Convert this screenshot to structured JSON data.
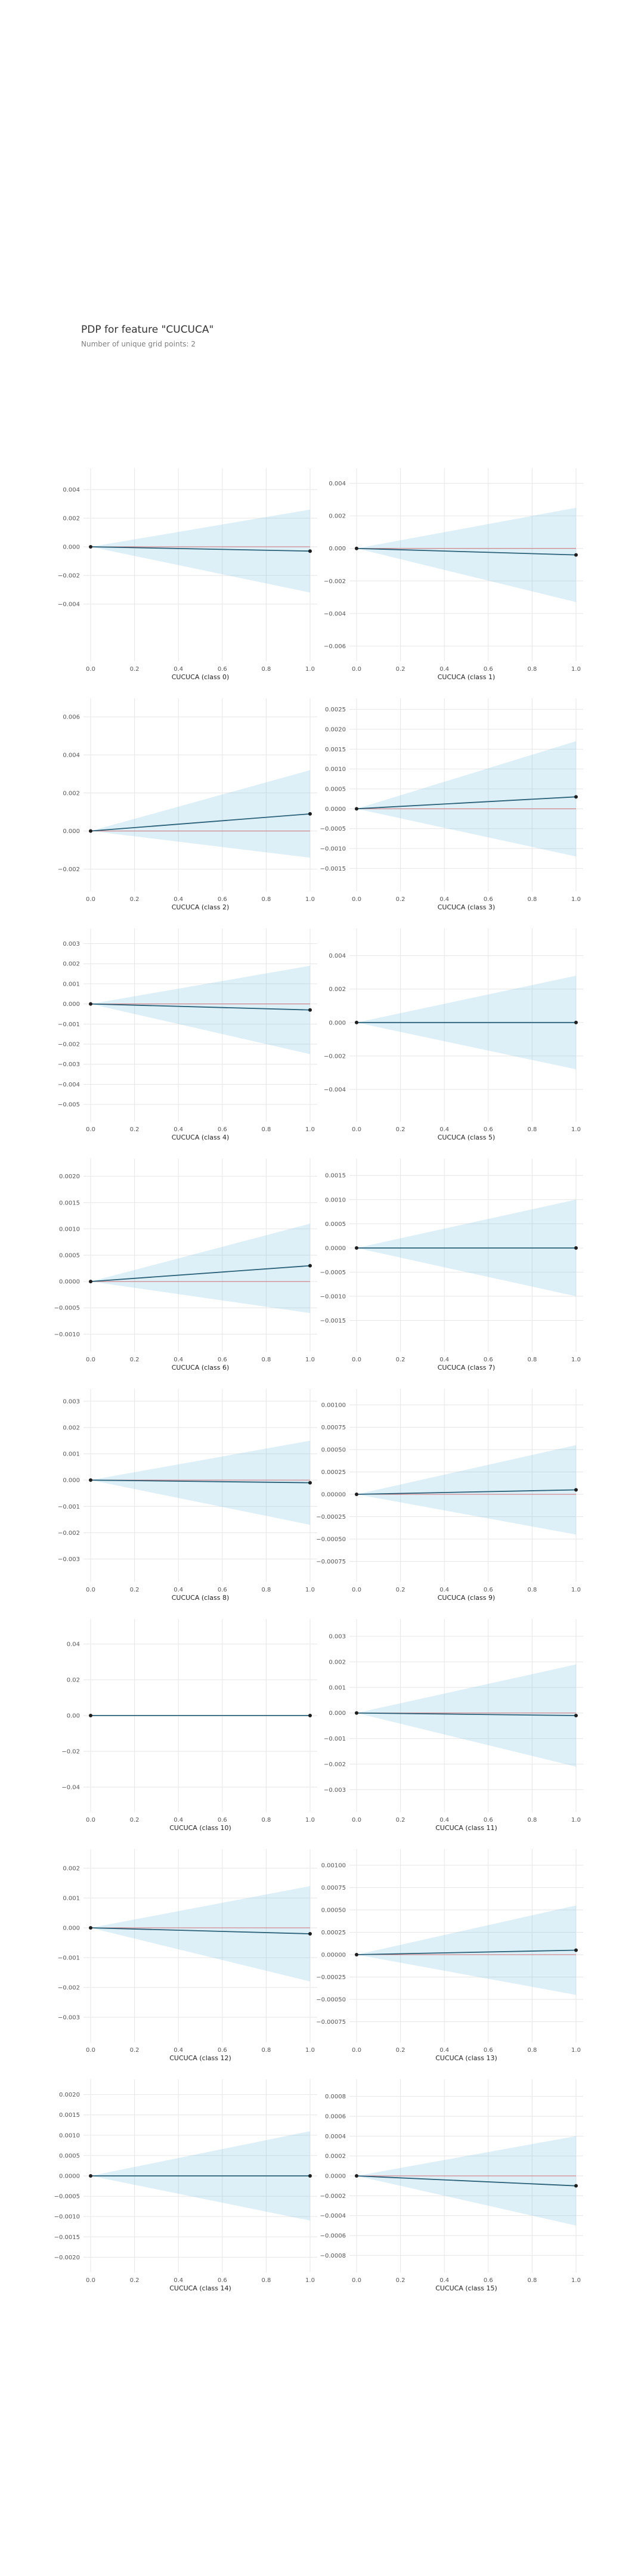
{
  "header": {
    "title": "PDP for feature \"CUCUCA\"",
    "subtitle": "Number of unique grid points: 2"
  },
  "colors": {
    "ci_fill": "#66b9df",
    "line": "#2a6178",
    "zero_line": "#d62728",
    "grid": "#e6e6e6",
    "tick_text": "#555555",
    "axis_title": "#222222"
  },
  "chart_data": [
    {
      "type": "line",
      "xlabel": "CUCUCA (class 0)",
      "x": [
        0,
        1
      ],
      "y": [
        0,
        -0.0003
      ],
      "ci_upper": [
        0,
        0.0026
      ],
      "ci_lower": [
        0,
        -0.0032
      ],
      "ylim": [
        -0.0075,
        0.005
      ],
      "yticks": [
        -0.004,
        -0.002,
        0,
        0.002,
        0.004
      ],
      "ytick_labels": [
        "−0.004",
        "−0.002",
        "0.000",
        "0.002",
        "0.004"
      ],
      "xticks": [
        0,
        0.2,
        0.4,
        0.6,
        0.8,
        1
      ],
      "xtick_labels": [
        "0.0",
        "0.2",
        "0.4",
        "0.6",
        "0.8",
        "1.0"
      ]
    },
    {
      "type": "line",
      "xlabel": "CUCUCA (class 1)",
      "x": [
        0,
        1
      ],
      "y": [
        0,
        -0.0004
      ],
      "ci_upper": [
        0,
        0.0025
      ],
      "ci_lower": [
        0,
        -0.0033
      ],
      "ylim": [
        -0.0065,
        0.0045
      ],
      "yticks": [
        -0.006,
        -0.004,
        -0.002,
        0,
        0.002,
        0.004
      ],
      "ytick_labels": [
        "−0.006",
        "−0.004",
        "−0.002",
        "0.000",
        "0.002",
        "0.004"
      ],
      "xticks": [
        0,
        0.2,
        0.4,
        0.6,
        0.8,
        1
      ],
      "xtick_labels": [
        "0.0",
        "0.2",
        "0.4",
        "0.6",
        "0.8",
        "1.0"
      ]
    },
    {
      "type": "line",
      "xlabel": "CUCUCA (class 2)",
      "x": [
        0,
        1
      ],
      "y": [
        0,
        0.0009
      ],
      "ci_upper": [
        0,
        0.0032
      ],
      "ci_lower": [
        0,
        -0.0014
      ],
      "ylim": [
        -0.0028,
        0.0066
      ],
      "yticks": [
        -0.002,
        0,
        0.002,
        0.004,
        0.006
      ],
      "ytick_labels": [
        "−0.002",
        "0.000",
        "0.002",
        "0.004",
        "0.006"
      ],
      "xticks": [
        0,
        0.2,
        0.4,
        0.6,
        0.8,
        1
      ],
      "xtick_labels": [
        "0.0",
        "0.2",
        "0.4",
        "0.6",
        "0.8",
        "1.0"
      ]
    },
    {
      "type": "line",
      "xlabel": "CUCUCA (class 3)",
      "x": [
        0,
        1
      ],
      "y": [
        0,
        0.0003
      ],
      "ci_upper": [
        0,
        0.0017
      ],
      "ci_lower": [
        0,
        -0.0012
      ],
      "ylim": [
        -0.0019,
        0.0026
      ],
      "yticks": [
        -0.0015,
        -0.001,
        -0.0005,
        0,
        0.0005,
        0.001,
        0.0015,
        0.002,
        0.0025
      ],
      "ytick_labels": [
        "−0.0015",
        "−0.0010",
        "−0.0005",
        "0.0000",
        "0.0005",
        "0.0010",
        "0.0015",
        "0.0020",
        "0.0025"
      ],
      "xticks": [
        0,
        0.2,
        0.4,
        0.6,
        0.8,
        1
      ],
      "xtick_labels": [
        "0.0",
        "0.2",
        "0.4",
        "0.6",
        "0.8",
        "1.0"
      ]
    },
    {
      "type": "line",
      "xlabel": "CUCUCA (class 4)",
      "x": [
        0,
        1
      ],
      "y": [
        0,
        -0.0003
      ],
      "ci_upper": [
        0,
        0.0019
      ],
      "ci_lower": [
        0,
        -0.0025
      ],
      "ylim": [
        -0.0055,
        0.0034
      ],
      "yticks": [
        -0.005,
        -0.004,
        -0.003,
        -0.002,
        -0.001,
        0,
        0.001,
        0.002,
        0.003
      ],
      "ytick_labels": [
        "−0.005",
        "−0.004",
        "−0.003",
        "−0.002",
        "−0.001",
        "0.000",
        "0.001",
        "0.002",
        "0.003"
      ],
      "xticks": [
        0,
        0.2,
        0.4,
        0.6,
        0.8,
        1
      ],
      "xtick_labels": [
        "0.0",
        "0.2",
        "0.4",
        "0.6",
        "0.8",
        "1.0"
      ]
    },
    {
      "type": "line",
      "xlabel": "CUCUCA (class 5)",
      "x": [
        0,
        1
      ],
      "y": [
        0,
        0
      ],
      "ci_upper": [
        0,
        0.0028
      ],
      "ci_lower": [
        0,
        -0.0028
      ],
      "ylim": [
        -0.0055,
        0.0052
      ],
      "yticks": [
        -0.004,
        -0.002,
        0,
        0.002,
        0.004
      ],
      "ytick_labels": [
        "−0.004",
        "−0.002",
        "0.000",
        "0.002",
        "0.004"
      ],
      "xticks": [
        0,
        0.2,
        0.4,
        0.6,
        0.8,
        1
      ],
      "xtick_labels": [
        "0.0",
        "0.2",
        "0.4",
        "0.6",
        "0.8",
        "1.0"
      ]
    },
    {
      "type": "line",
      "xlabel": "CUCUCA (class 6)",
      "x": [
        0,
        1
      ],
      "y": [
        0,
        0.0003
      ],
      "ci_upper": [
        0,
        0.0011
      ],
      "ci_lower": [
        0,
        -0.0006
      ],
      "ylim": [
        -0.0012,
        0.0022
      ],
      "yticks": [
        -0.001,
        -0.0005,
        0,
        0.0005,
        0.001,
        0.0015,
        0.002
      ],
      "ytick_labels": [
        "−0.0010",
        "−0.0005",
        "0.0000",
        "0.0005",
        "0.0010",
        "0.0015",
        "0.0020"
      ],
      "xticks": [
        0,
        0.2,
        0.4,
        0.6,
        0.8,
        1
      ],
      "xtick_labels": [
        "0.0",
        "0.2",
        "0.4",
        "0.6",
        "0.8",
        "1.0"
      ]
    },
    {
      "type": "line",
      "xlabel": "CUCUCA (class 7)",
      "x": [
        0,
        1
      ],
      "y": [
        0,
        0
      ],
      "ci_upper": [
        0,
        0.001
      ],
      "ci_lower": [
        0,
        -0.001
      ],
      "ylim": [
        -0.002,
        0.0017
      ],
      "yticks": [
        -0.0015,
        -0.001,
        -0.0005,
        0,
        0.0005,
        0.001,
        0.0015
      ],
      "ytick_labels": [
        "−0.0015",
        "−0.0010",
        "−0.0005",
        "0.0000",
        "0.0005",
        "0.0010",
        "0.0015"
      ],
      "xticks": [
        0,
        0.2,
        0.4,
        0.6,
        0.8,
        1
      ],
      "xtick_labels": [
        "0.0",
        "0.2",
        "0.4",
        "0.6",
        "0.8",
        "1.0"
      ]
    },
    {
      "type": "line",
      "xlabel": "CUCUCA (class 8)",
      "x": [
        0,
        1
      ],
      "y": [
        0,
        -0.0001
      ],
      "ci_upper": [
        0,
        0.0015
      ],
      "ci_lower": [
        0,
        -0.0017
      ],
      "ylim": [
        -0.0036,
        0.0032
      ],
      "yticks": [
        -0.003,
        -0.002,
        -0.001,
        0,
        0.001,
        0.002,
        0.003
      ],
      "ytick_labels": [
        "−0.003",
        "−0.002",
        "−0.001",
        "0.000",
        "0.001",
        "0.002",
        "0.003"
      ],
      "xticks": [
        0,
        0.2,
        0.4,
        0.6,
        0.8,
        1
      ],
      "xtick_labels": [
        "0.0",
        "0.2",
        "0.4",
        "0.6",
        "0.8",
        "1.0"
      ]
    },
    {
      "type": "line",
      "xlabel": "CUCUCA (class 9)",
      "x": [
        0,
        1
      ],
      "y": [
        0,
        5e-05
      ],
      "ci_upper": [
        0,
        0.00055
      ],
      "ci_lower": [
        0,
        -0.00045
      ],
      "ylim": [
        -0.0009,
        0.0011
      ],
      "yticks": [
        -0.00075,
        -0.0005,
        -0.00025,
        0,
        0.00025,
        0.0005,
        0.00075,
        0.001
      ],
      "ytick_labels": [
        "−0.00075",
        "−0.00050",
        "−0.00025",
        "0.00000",
        "0.00025",
        "0.00050",
        "0.00075",
        "0.00100"
      ],
      "xticks": [
        0,
        0.2,
        0.4,
        0.6,
        0.8,
        1
      ],
      "xtick_labels": [
        "0.0",
        "0.2",
        "0.4",
        "0.6",
        "0.8",
        "1.0"
      ]
    },
    {
      "type": "line",
      "xlabel": "CUCUCA (class 10)",
      "x": [
        0,
        1
      ],
      "y": [
        0,
        0
      ],
      "ci_upper": [
        0,
        0
      ],
      "ci_lower": [
        0,
        0
      ],
      "ylim": [
        -0.05,
        0.05
      ],
      "yticks": [
        -0.04,
        -0.02,
        0,
        0.02,
        0.04
      ],
      "ytick_labels": [
        "−0.04",
        "−0.02",
        "0.00",
        "0.02",
        "0.04"
      ],
      "xticks": [
        0,
        0.2,
        0.4,
        0.6,
        0.8,
        1
      ],
      "xtick_labels": [
        "0.0",
        "0.2",
        "0.4",
        "0.6",
        "0.8",
        "1.0"
      ]
    },
    {
      "type": "line",
      "xlabel": "CUCUCA (class 11)",
      "x": [
        0,
        1
      ],
      "y": [
        0,
        -0.0001
      ],
      "ci_upper": [
        0,
        0.0019
      ],
      "ci_lower": [
        0,
        -0.0021
      ],
      "ylim": [
        -0.0036,
        0.0034
      ],
      "yticks": [
        -0.003,
        -0.002,
        -0.001,
        0,
        0.001,
        0.002,
        0.003
      ],
      "ytick_labels": [
        "−0.003",
        "−0.002",
        "−0.001",
        "0.000",
        "0.001",
        "0.002",
        "0.003"
      ],
      "xticks": [
        0,
        0.2,
        0.4,
        0.6,
        0.8,
        1
      ],
      "xtick_labels": [
        "0.0",
        "0.2",
        "0.4",
        "0.6",
        "0.8",
        "1.0"
      ]
    },
    {
      "type": "line",
      "xlabel": "CUCUCA (class 12)",
      "x": [
        0,
        1
      ],
      "y": [
        0,
        -0.0002
      ],
      "ci_upper": [
        0,
        0.0014
      ],
      "ci_lower": [
        0,
        -0.0018
      ],
      "ylim": [
        -0.0036,
        0.0024
      ],
      "yticks": [
        -0.003,
        -0.002,
        -0.001,
        0,
        0.001,
        0.002
      ],
      "ytick_labels": [
        "−0.003",
        "−0.002",
        "−0.001",
        "0.000",
        "0.001",
        "0.002"
      ],
      "xticks": [
        0,
        0.2,
        0.4,
        0.6,
        0.8,
        1
      ],
      "xtick_labels": [
        "0.0",
        "0.2",
        "0.4",
        "0.6",
        "0.8",
        "1.0"
      ]
    },
    {
      "type": "line",
      "xlabel": "CUCUCA (class 13)",
      "x": [
        0,
        1
      ],
      "y": [
        0,
        5e-05
      ],
      "ci_upper": [
        0,
        0.00055
      ],
      "ci_lower": [
        0,
        -0.00045
      ],
      "ylim": [
        -0.0009,
        0.0011
      ],
      "yticks": [
        -0.00075,
        -0.0005,
        -0.00025,
        0,
        0.00025,
        0.0005,
        0.00075,
        0.001
      ],
      "ytick_labels": [
        "−0.00075",
        "−0.00050",
        "−0.00025",
        "0.00000",
        "0.00025",
        "0.00050",
        "0.00075",
        "0.00100"
      ],
      "xticks": [
        0,
        0.2,
        0.4,
        0.6,
        0.8,
        1
      ],
      "xtick_labels": [
        "0.0",
        "0.2",
        "0.4",
        "0.6",
        "0.8",
        "1.0"
      ]
    },
    {
      "type": "line",
      "xlabel": "CUCUCA (class 14)",
      "x": [
        0,
        1
      ],
      "y": [
        0,
        0
      ],
      "ci_upper": [
        0,
        0.0011
      ],
      "ci_lower": [
        0,
        -0.0011
      ],
      "ylim": [
        -0.0022,
        0.0022
      ],
      "yticks": [
        -0.002,
        -0.0015,
        -0.001,
        -0.0005,
        0,
        0.0005,
        0.001,
        0.0015,
        0.002
      ],
      "ytick_labels": [
        "−0.0020",
        "−0.0015",
        "−0.0010",
        "−0.0005",
        "0.0000",
        "0.0005",
        "0.0010",
        "0.0015",
        "0.0020"
      ],
      "xticks": [
        0,
        0.2,
        0.4,
        0.6,
        0.8,
        1
      ],
      "xtick_labels": [
        "0.0",
        "0.2",
        "0.4",
        "0.6",
        "0.8",
        "1.0"
      ]
    },
    {
      "type": "line",
      "xlabel": "CUCUCA (class 15)",
      "x": [
        0,
        1
      ],
      "y": [
        0,
        -0.0001
      ],
      "ci_upper": [
        0,
        0.0004
      ],
      "ci_lower": [
        0,
        -0.0005
      ],
      "ylim": [
        -0.0009,
        0.0009
      ],
      "yticks": [
        -0.0008,
        -0.0006,
        -0.0004,
        -0.0002,
        0,
        0.0002,
        0.0004,
        0.0006,
        0.0008
      ],
      "ytick_labels": [
        "−0.0008",
        "−0.0006",
        "−0.0004",
        "−0.0002",
        "0.0000",
        "0.0002",
        "0.0004",
        "0.0006",
        "0.0008"
      ],
      "xticks": [
        0,
        0.2,
        0.4,
        0.6,
        0.8,
        1
      ],
      "xtick_labels": [
        "0.0",
        "0.2",
        "0.4",
        "0.6",
        "0.8",
        "1.0"
      ]
    }
  ]
}
